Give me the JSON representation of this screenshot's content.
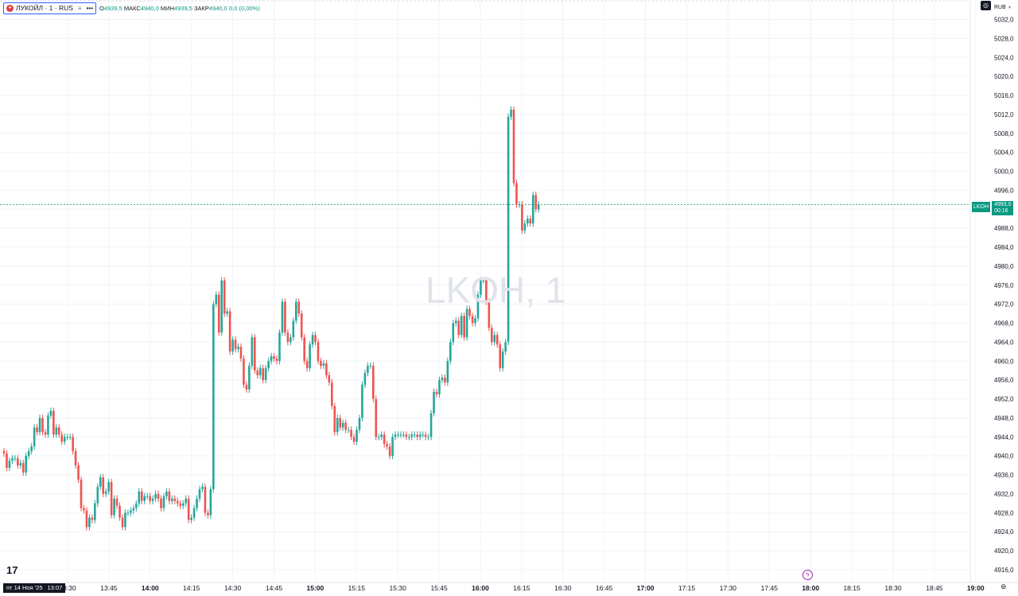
{
  "legend": {
    "symbol_title": "ЛУКОЙЛ · 1 · RUS",
    "menu_icon": "hamburger-icon",
    "more_icon": "more-dots-icon",
    "ohlc_open": "4939,5",
    "high_label": "МАКС",
    "high": "4940,0",
    "low_label": "МИН",
    "low": "4939,5",
    "close_label": "ЗАКР",
    "close": "4940,0",
    "change": "0,0 (0,00%)"
  },
  "currency": "RUB",
  "watermark": "LKOH, 1",
  "price_tag": {
    "ticker": "LKOH",
    "price": "4993,0",
    "countdown": "00:16"
  },
  "date_badge": {
    "date": "пт 14 Ноя '25",
    "time": "13:07"
  },
  "colors": {
    "up": "#26a69a",
    "down": "#ef5350",
    "last_price": "#089981",
    "grid": "#f0f3fa"
  },
  "chart_data": {
    "type": "candlestick",
    "y_axis_ticks": [
      "5032,0",
      "5028,0",
      "5024,0",
      "5020,0",
      "5016,0",
      "5012,0",
      "5008,0",
      "5004,0",
      "5000,0",
      "4996,0",
      "4992,0",
      "4988,0",
      "4984,0",
      "4980,0",
      "4976,0",
      "4972,0",
      "4968,0",
      "4964,0",
      "4960,0",
      "4956,0",
      "4952,0",
      "4948,0",
      "4944,0",
      "4940,0",
      "4936,0",
      "4932,0",
      "4928,0",
      "4924,0",
      "4920,0",
      "4916,0"
    ],
    "x_axis_ticks": [
      "13:30",
      "13:45",
      "14:00",
      "14:15",
      "14:30",
      "14:45",
      "15:00",
      "15:15",
      "15:30",
      "15:45",
      "16:00",
      "16:15",
      "16:30",
      "16:45",
      "17:00",
      "17:15",
      "17:30",
      "17:45",
      "18:00",
      "18:15",
      "18:30",
      "18:45",
      "19:00"
    ],
    "bold_x_ticks": [
      "14:00",
      "15:00",
      "16:00",
      "17:00",
      "18:00",
      "19:00"
    ],
    "ylim": [
      4914,
      5034
    ],
    "last_price": 4993.0,
    "closes": [
      4940.5,
      4937.5,
      4939.0,
      4939.5,
      4939.5,
      4938.0,
      4938.5,
      4936.5,
      4940.0,
      4941.0,
      4942.0,
      4946.0,
      4945.0,
      4948.0,
      4945.0,
      4944.5,
      4948.5,
      4949.5,
      4944.5,
      4946.0,
      4944.5,
      4943.0,
      4944.0,
      4944.0,
      4944.0,
      4941.0,
      4938.0,
      4935.0,
      4929.0,
      4928.5,
      4925.0,
      4927.0,
      4926.5,
      4930.0,
      4933.5,
      4935.5,
      4932.0,
      4932.5,
      4934.5,
      4927.5,
      4931.0,
      4929.5,
      4927.0,
      4925.0,
      4928.0,
      4928.0,
      4928.5,
      4929.0,
      4930.0,
      4932.5,
      4930.5,
      4931.5,
      4931.5,
      4930.5,
      4931.0,
      4932.0,
      4931.0,
      4929.0,
      4931.5,
      4932.5,
      4930.5,
      4931.0,
      4930.5,
      4930.0,
      4929.5,
      4930.0,
      4931.0,
      4926.5,
      4927.0,
      4929.0,
      4931.0,
      4933.0,
      4933.5,
      4928.0,
      4927.5,
      4933.0,
      4972.0,
      4974.0,
      4966.0,
      4977.0,
      4970.0,
      4970.5,
      4962.0,
      4964.5,
      4962.5,
      4963.0,
      4960.5,
      4955.0,
      4954.0,
      4959.0,
      4965.0,
      4958.0,
      4957.0,
      4958.5,
      4956.0,
      4958.5,
      4960.0,
      4961.0,
      4960.5,
      4960.0,
      4966.0,
      4972.5,
      4966.0,
      4964.0,
      4965.0,
      4968.5,
      4972.5,
      4970.0,
      4965.0,
      4960.0,
      4958.5,
      4963.5,
      4965.5,
      4964.0,
      4960.0,
      4959.0,
      4959.5,
      4957.0,
      4955.5,
      4950.5,
      4945.0,
      4948.0,
      4946.0,
      4947.0,
      4945.5,
      4945.5,
      4944.0,
      4943.0,
      4945.5,
      4948.0,
      4955.0,
      4957.5,
      4959.0,
      4959.0,
      4952.0,
      4944.0,
      4944.0,
      4944.5,
      4942.5,
      4942.0,
      4940.0,
      4944.0,
      4944.5,
      4944.5,
      4944.5,
      4944.5,
      4944.0,
      4944.0,
      4944.5,
      4944.5,
      4944.0,
      4944.5,
      4944.5,
      4944.0,
      4944.0,
      4949.0,
      4953.5,
      4953.0,
      4956.0,
      4956.5,
      4955.5,
      4960.0,
      4964.0,
      4968.0,
      4968.5,
      4965.5,
      4969.5,
      4965.0,
      4971.0,
      4969.5,
      4968.0,
      4969.0,
      4974.0,
      4977.0,
      4977.0,
      4972.5,
      4967.0,
      4964.0,
      4965.5,
      4963.5,
      4958.5,
      4962.0,
      4964.0,
      5011.5,
      5013.0,
      4997.5,
      4993.0,
      4993.0,
      4987.5,
      4989.0,
      4990.0,
      4989.0,
      4995.0,
      4992.0,
      4993.0
    ],
    "open": 4941.0
  }
}
